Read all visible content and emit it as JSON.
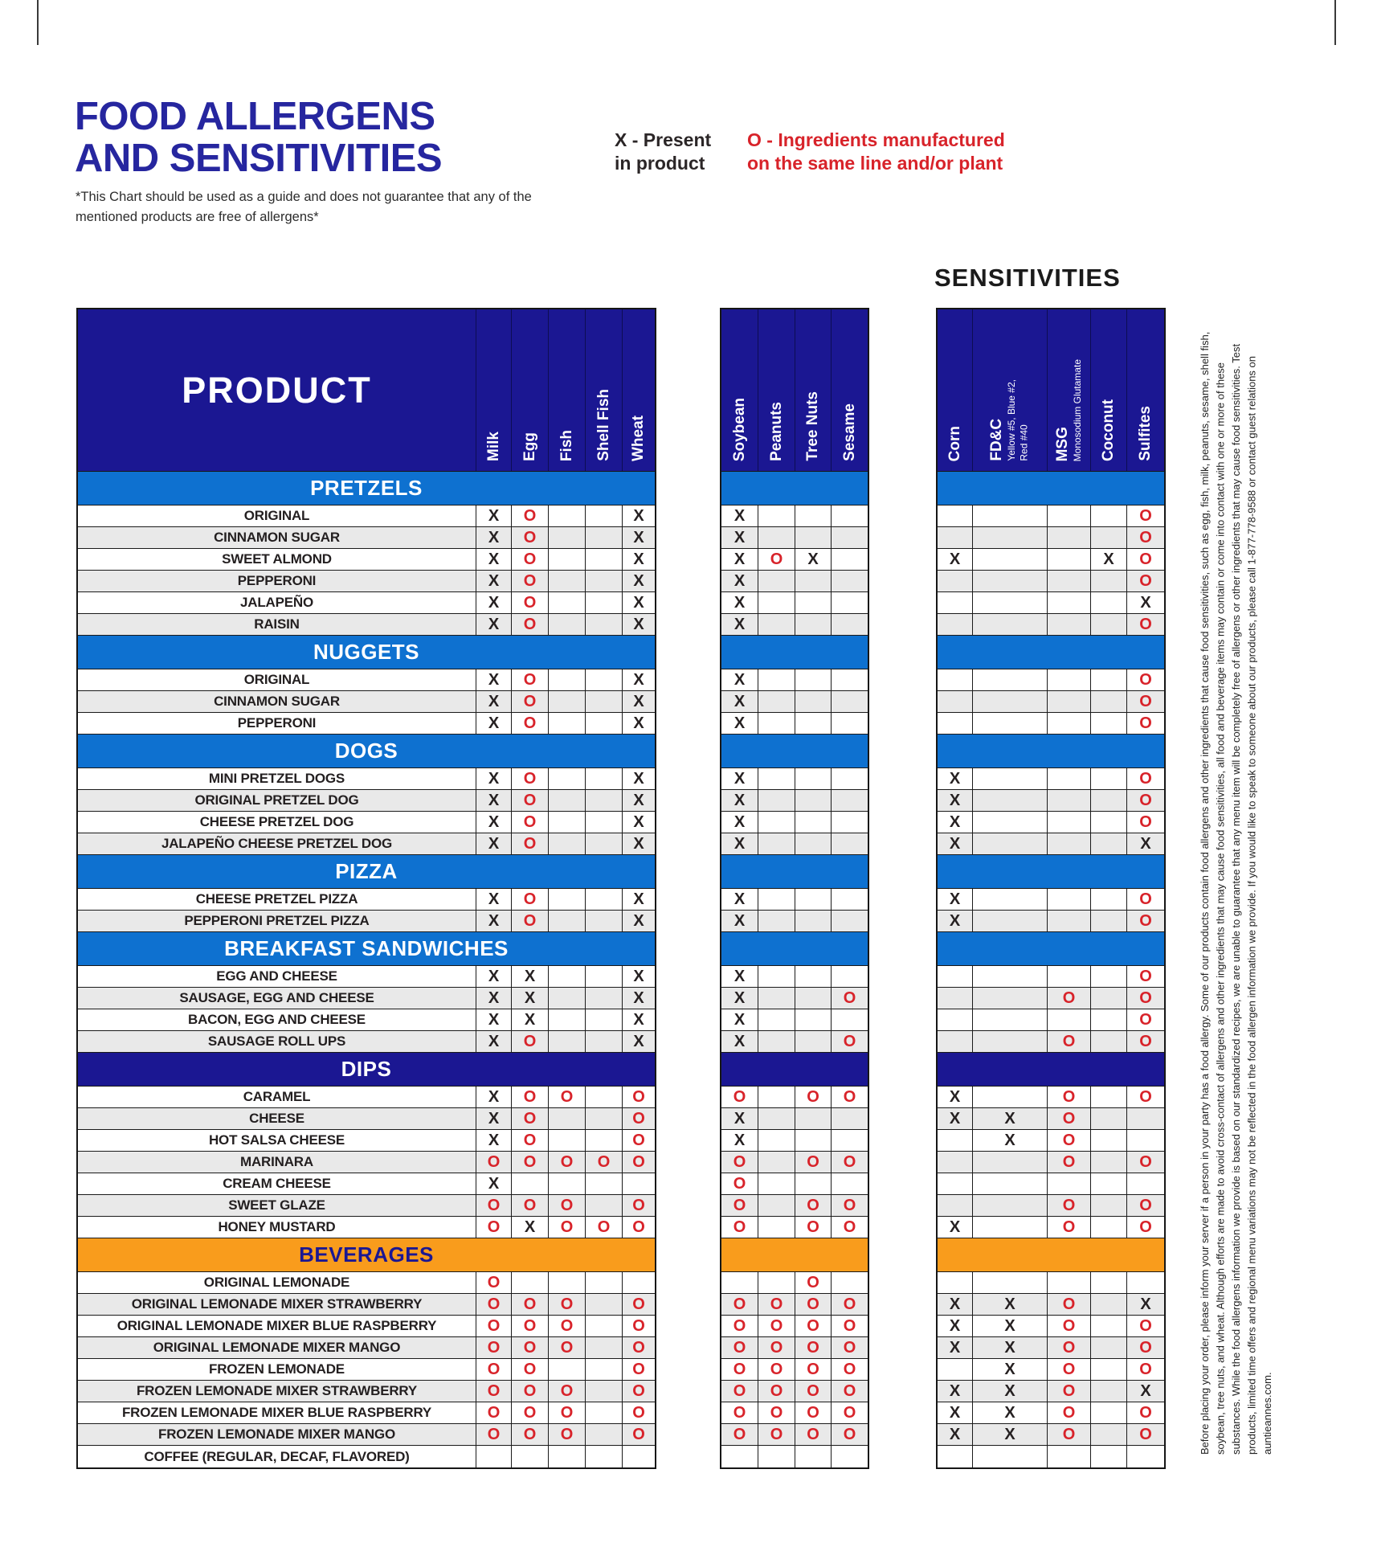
{
  "page": {
    "title_line1": "FOOD ALLERGENS",
    "title_line2": "AND SENSITIVITIES",
    "note_line1": "*This Chart should be used as a guide and does not guarantee that any of the",
    "note_line2": "mentioned products are free of allergens*",
    "legend_x_line1": "X - Present",
    "legend_x_line2": "in product",
    "legend_o_line1": "O - Ingredients manufactured",
    "legend_o_line2": "on the same line and/or plant",
    "sensitivities_label": "SENSITIVITIES",
    "product_header": "PRODUCT",
    "footnote_vertical": "Before placing your order, please inform your server if a person in your party has a food allergy. Some of our products contain food allergens and other ingredients that cause food sensitivities, such as egg, fish, milk, peanuts, sesame, shell fish, soybean, tree nuts, and wheat. Although efforts are made to avoid cross-contact of allergens and other ingredients that may cause food sensitivities, all food and beverage items may contain or come into contact with one or more of these substances. While the food allergens information we provide is based on our standardized recipes, we are unable to guarantee that any menu item will be completely free of allergens or other ingredients that may cause food sensitivities. Test products, limited time offers and regional menu variations may not be reflected in the food allergen information we provide. If you would like to speak to someone about our products, please call 1-877-778-9588 or contact guest relations on auntieannes.com."
  },
  "colors": {
    "navy": "#1b1792",
    "light_blue": "#0e71d0",
    "orange": "#f99c1c",
    "red": "#d8232a",
    "title_blue": "#26269f",
    "row_alt_gray": "#e9e9e9"
  },
  "columns": {
    "allergens": [
      "Milk",
      "Egg",
      "Fish",
      "Shell Fish",
      "Wheat"
    ],
    "allergens2": [
      "Soybean",
      "Peanuts",
      "Tree Nuts",
      "Sesame"
    ],
    "sensitivities": [
      {
        "name": "Corn",
        "sub": ""
      },
      {
        "name": "FD&C",
        "sub": "Yellow #5, Blue #2,\nRed #40"
      },
      {
        "name": "MSG",
        "sub": "Monosodium Glutamate"
      },
      {
        "name": "Coconut",
        "sub": ""
      },
      {
        "name": "Sulfites",
        "sub": ""
      }
    ]
  },
  "marks": {
    "present": "X",
    "cross_contact": "O"
  },
  "sections": [
    {
      "label": "PRETZELS",
      "style": "blue",
      "rows": [
        {
          "product": "ORIGINAL",
          "allergens": [
            "X",
            "O",
            "",
            "",
            "X"
          ],
          "allergens2": [
            "X",
            "",
            "",
            ""
          ],
          "sensitivities": [
            "",
            "",
            "",
            "",
            "O"
          ]
        },
        {
          "product": "CINNAMON SUGAR",
          "allergens": [
            "X",
            "O",
            "",
            "",
            "X"
          ],
          "allergens2": [
            "X",
            "",
            "",
            ""
          ],
          "sensitivities": [
            "",
            "",
            "",
            "",
            "O"
          ]
        },
        {
          "product": "SWEET ALMOND",
          "allergens": [
            "X",
            "O",
            "",
            "",
            "X"
          ],
          "allergens2": [
            "X",
            "O",
            "X",
            ""
          ],
          "sensitivities": [
            "X",
            "",
            "",
            "X",
            "O"
          ]
        },
        {
          "product": "PEPPERONI",
          "allergens": [
            "X",
            "O",
            "",
            "",
            "X"
          ],
          "allergens2": [
            "X",
            "",
            "",
            ""
          ],
          "sensitivities": [
            "",
            "",
            "",
            "",
            "O"
          ]
        },
        {
          "product": "JALAPEÑO",
          "allergens": [
            "X",
            "O",
            "",
            "",
            "X"
          ],
          "allergens2": [
            "X",
            "",
            "",
            ""
          ],
          "sensitivities": [
            "",
            "",
            "",
            "",
            "X"
          ]
        },
        {
          "product": "RAISIN",
          "allergens": [
            "X",
            "O",
            "",
            "",
            "X"
          ],
          "allergens2": [
            "X",
            "",
            "",
            ""
          ],
          "sensitivities": [
            "",
            "",
            "",
            "",
            "O"
          ]
        }
      ]
    },
    {
      "label": "NUGGETS",
      "style": "blue",
      "rows": [
        {
          "product": "ORIGINAL",
          "allergens": [
            "X",
            "O",
            "",
            "",
            "X"
          ],
          "allergens2": [
            "X",
            "",
            "",
            ""
          ],
          "sensitivities": [
            "",
            "",
            "",
            "",
            "O"
          ]
        },
        {
          "product": "CINNAMON SUGAR",
          "allergens": [
            "X",
            "O",
            "",
            "",
            "X"
          ],
          "allergens2": [
            "X",
            "",
            "",
            ""
          ],
          "sensitivities": [
            "",
            "",
            "",
            "",
            "O"
          ]
        },
        {
          "product": "PEPPERONI",
          "allergens": [
            "X",
            "O",
            "",
            "",
            "X"
          ],
          "allergens2": [
            "X",
            "",
            "",
            ""
          ],
          "sensitivities": [
            "",
            "",
            "",
            "",
            "O"
          ]
        }
      ]
    },
    {
      "label": "DOGS",
      "style": "blue",
      "rows": [
        {
          "product": "MINI PRETZEL DOGS",
          "allergens": [
            "X",
            "O",
            "",
            "",
            "X"
          ],
          "allergens2": [
            "X",
            "",
            "",
            ""
          ],
          "sensitivities": [
            "X",
            "",
            "",
            "",
            "O"
          ]
        },
        {
          "product": "ORIGINAL PRETZEL DOG",
          "allergens": [
            "X",
            "O",
            "",
            "",
            "X"
          ],
          "allergens2": [
            "X",
            "",
            "",
            ""
          ],
          "sensitivities": [
            "X",
            "",
            "",
            "",
            "O"
          ]
        },
        {
          "product": "CHEESE PRETZEL DOG",
          "allergens": [
            "X",
            "O",
            "",
            "",
            "X"
          ],
          "allergens2": [
            "X",
            "",
            "",
            ""
          ],
          "sensitivities": [
            "X",
            "",
            "",
            "",
            "O"
          ]
        },
        {
          "product": "JALAPEÑO CHEESE PRETZEL DOG",
          "allergens": [
            "X",
            "O",
            "",
            "",
            "X"
          ],
          "allergens2": [
            "X",
            "",
            "",
            ""
          ],
          "sensitivities": [
            "X",
            "",
            "",
            "",
            "X"
          ]
        }
      ]
    },
    {
      "label": "PIZZA",
      "style": "blue",
      "rows": [
        {
          "product": "CHEESE PRETZEL PIZZA",
          "allergens": [
            "X",
            "O",
            "",
            "",
            "X"
          ],
          "allergens2": [
            "X",
            "",
            "",
            ""
          ],
          "sensitivities": [
            "X",
            "",
            "",
            "",
            "O"
          ]
        },
        {
          "product": "PEPPERONI PRETZEL PIZZA",
          "allergens": [
            "X",
            "O",
            "",
            "",
            "X"
          ],
          "allergens2": [
            "X",
            "",
            "",
            ""
          ],
          "sensitivities": [
            "X",
            "",
            "",
            "",
            "O"
          ]
        }
      ]
    },
    {
      "label": "BREAKFAST SANDWICHES",
      "style": "blue",
      "rows": [
        {
          "product": "EGG AND CHEESE",
          "allergens": [
            "X",
            "X",
            "",
            "",
            "X"
          ],
          "allergens2": [
            "X",
            "",
            "",
            ""
          ],
          "sensitivities": [
            "",
            "",
            "",
            "",
            "O"
          ]
        },
        {
          "product": "SAUSAGE, EGG AND CHEESE",
          "allergens": [
            "X",
            "X",
            "",
            "",
            "X"
          ],
          "allergens2": [
            "X",
            "",
            "",
            "O"
          ],
          "sensitivities": [
            "",
            "",
            "O",
            "",
            "O"
          ]
        },
        {
          "product": "BACON, EGG AND CHEESE",
          "allergens": [
            "X",
            "X",
            "",
            "",
            "X"
          ],
          "allergens2": [
            "X",
            "",
            "",
            ""
          ],
          "sensitivities": [
            "",
            "",
            "",
            "",
            "O"
          ]
        },
        {
          "product": "SAUSAGE ROLL UPS",
          "allergens": [
            "X",
            "O",
            "",
            "",
            "X"
          ],
          "allergens2": [
            "X",
            "",
            "",
            "O"
          ],
          "sensitivities": [
            "",
            "",
            "O",
            "",
            "O"
          ]
        }
      ]
    },
    {
      "label": "DIPS",
      "style": "navy",
      "rows": [
        {
          "product": "CARAMEL",
          "allergens": [
            "X",
            "O",
            "O",
            "",
            "O"
          ],
          "allergens2": [
            "O",
            "",
            "O",
            "O"
          ],
          "sensitivities": [
            "X",
            "",
            "O",
            "",
            "O"
          ]
        },
        {
          "product": "CHEESE",
          "allergens": [
            "X",
            "O",
            "",
            "",
            "O"
          ],
          "allergens2": [
            "X",
            "",
            "",
            ""
          ],
          "sensitivities": [
            "X",
            "X",
            "O",
            "",
            ""
          ]
        },
        {
          "product": "HOT SALSA CHEESE",
          "allergens": [
            "X",
            "O",
            "",
            "",
            "O"
          ],
          "allergens2": [
            "X",
            "",
            "",
            ""
          ],
          "sensitivities": [
            "",
            "X",
            "O",
            "",
            ""
          ]
        },
        {
          "product": "MARINARA",
          "allergens": [
            "O",
            "O",
            "O",
            "O",
            "O"
          ],
          "allergens2": [
            "O",
            "",
            "O",
            "O"
          ],
          "sensitivities": [
            "",
            "",
            "O",
            "",
            "O"
          ]
        },
        {
          "product": "CREAM CHEESE",
          "allergens": [
            "X",
            "",
            "",
            "",
            ""
          ],
          "allergens2": [
            "O",
            "",
            "",
            ""
          ],
          "sensitivities": [
            "",
            "",
            "",
            "",
            ""
          ]
        },
        {
          "product": "SWEET GLAZE",
          "allergens": [
            "O",
            "O",
            "O",
            "",
            "O"
          ],
          "allergens2": [
            "O",
            "",
            "O",
            "O"
          ],
          "sensitivities": [
            "",
            "",
            "O",
            "",
            "O"
          ]
        },
        {
          "product": "HONEY MUSTARD",
          "allergens": [
            "O",
            "X",
            "O",
            "O",
            "O"
          ],
          "allergens2": [
            "O",
            "",
            "O",
            "O"
          ],
          "sensitivities": [
            "X",
            "",
            "O",
            "",
            "O"
          ]
        }
      ]
    },
    {
      "label": "BEVERAGES",
      "style": "orange",
      "rows": [
        {
          "product": "ORIGINAL LEMONADE",
          "allergens": [
            "O",
            "",
            "",
            "",
            ""
          ],
          "allergens2": [
            "",
            "",
            "O",
            ""
          ],
          "sensitivities": [
            "",
            "",
            "",
            "",
            ""
          ]
        },
        {
          "product": "ORIGINAL LEMONADE MIXER STRAWBERRY",
          "allergens": [
            "O",
            "O",
            "O",
            "",
            "O"
          ],
          "allergens2": [
            "O",
            "O",
            "O",
            "O"
          ],
          "sensitivities": [
            "X",
            "X",
            "O",
            "",
            "X"
          ]
        },
        {
          "product": "ORIGINAL LEMONADE MIXER BLUE RASPBERRY",
          "allergens": [
            "O",
            "O",
            "O",
            "",
            "O"
          ],
          "allergens2": [
            "O",
            "O",
            "O",
            "O"
          ],
          "sensitivities": [
            "X",
            "X",
            "O",
            "",
            "O"
          ]
        },
        {
          "product": "ORIGINAL LEMONADE MIXER MANGO",
          "allergens": [
            "O",
            "O",
            "O",
            "",
            "O"
          ],
          "allergens2": [
            "O",
            "O",
            "O",
            "O"
          ],
          "sensitivities": [
            "X",
            "X",
            "O",
            "",
            "O"
          ]
        },
        {
          "product": "FROZEN LEMONADE",
          "allergens": [
            "O",
            "O",
            "",
            "",
            "O"
          ],
          "allergens2": [
            "O",
            "O",
            "O",
            "O"
          ],
          "sensitivities": [
            "",
            "X",
            "O",
            "",
            "O"
          ]
        },
        {
          "product": "FROZEN LEMONADE MIXER STRAWBERRY",
          "allergens": [
            "O",
            "O",
            "O",
            "",
            "O"
          ],
          "allergens2": [
            "O",
            "O",
            "O",
            "O"
          ],
          "sensitivities": [
            "X",
            "X",
            "O",
            "",
            "X"
          ]
        },
        {
          "product": "FROZEN LEMONADE MIXER BLUE RASPBERRY",
          "allergens": [
            "O",
            "O",
            "O",
            "",
            "O"
          ],
          "allergens2": [
            "O",
            "O",
            "O",
            "O"
          ],
          "sensitivities": [
            "X",
            "X",
            "O",
            "",
            "O"
          ]
        },
        {
          "product": "FROZEN LEMONADE MIXER MANGO",
          "allergens": [
            "O",
            "O",
            "O",
            "",
            "O"
          ],
          "allergens2": [
            "O",
            "O",
            "O",
            "O"
          ],
          "sensitivities": [
            "X",
            "X",
            "O",
            "",
            "O"
          ]
        },
        {
          "product": "COFFEE (REGULAR, DECAF, FLAVORED)",
          "allergens": [
            "",
            "",
            "",
            "",
            ""
          ],
          "allergens2": [
            "",
            "",
            "",
            ""
          ],
          "sensitivities": [
            "",
            "",
            "",
            "",
            ""
          ]
        }
      ]
    }
  ]
}
